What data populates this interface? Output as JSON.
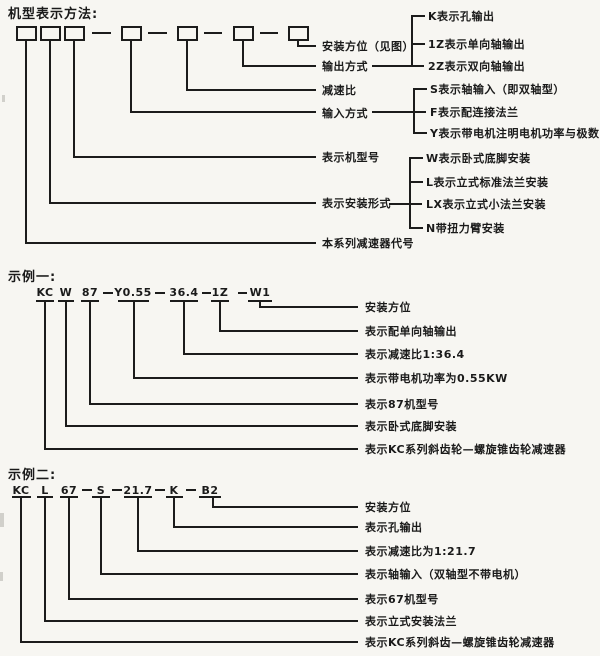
{
  "header": {
    "title": "机型表示方法:"
  },
  "top_diagram": {
    "series_code": "本系列减速器代号",
    "mount_form": "表示安装形式",
    "model_size": "表示机型号",
    "input_mode": "输入方式",
    "ratio": "减速比",
    "output_mode": "输出方式",
    "orientation": "安装方位（见图）",
    "output_options": [
      "K表示孔输出",
      "1Z表示单向轴输出",
      "2Z表示双向轴输出"
    ],
    "input_options": [
      "S表示轴输入（即双轴型）",
      "F表示配连接法兰",
      "Y表示带电机注明电机功率与极数"
    ],
    "mount_options": [
      "W表示卧式底脚安装",
      "L表示立式标准法兰安装",
      "LX表示立式小法兰安装",
      "N带扭力臂安装"
    ]
  },
  "example1": {
    "title": "示例一:",
    "code": [
      "KC",
      "W",
      "87",
      "Y0.55",
      "36.4",
      "1Z",
      "W1"
    ],
    "labels": [
      "安装方位",
      "表示配单向轴输出",
      "表示减速比1:36.4",
      "表示带电机功率为0.55KW",
      "表示87机型号",
      "表示卧式底脚安装",
      "表示KC系列斜齿轮—螺旋锥齿轮减速器"
    ]
  },
  "example2": {
    "title": "示例二:",
    "code": [
      "KC",
      "L",
      "67",
      "S",
      "21.7",
      "K",
      "B2"
    ],
    "labels": [
      "安装方位",
      "表示孔输出",
      "表示减速比为1:21.7",
      "表示轴输入（双轴型不带电机）",
      "表示67机型号",
      "表示立式安装法兰",
      "表示KC系列斜齿—螺旋锥齿轮减速器"
    ]
  },
  "colors": {
    "ink": "#1c1c1c",
    "paper": "#f7f6f2"
  }
}
